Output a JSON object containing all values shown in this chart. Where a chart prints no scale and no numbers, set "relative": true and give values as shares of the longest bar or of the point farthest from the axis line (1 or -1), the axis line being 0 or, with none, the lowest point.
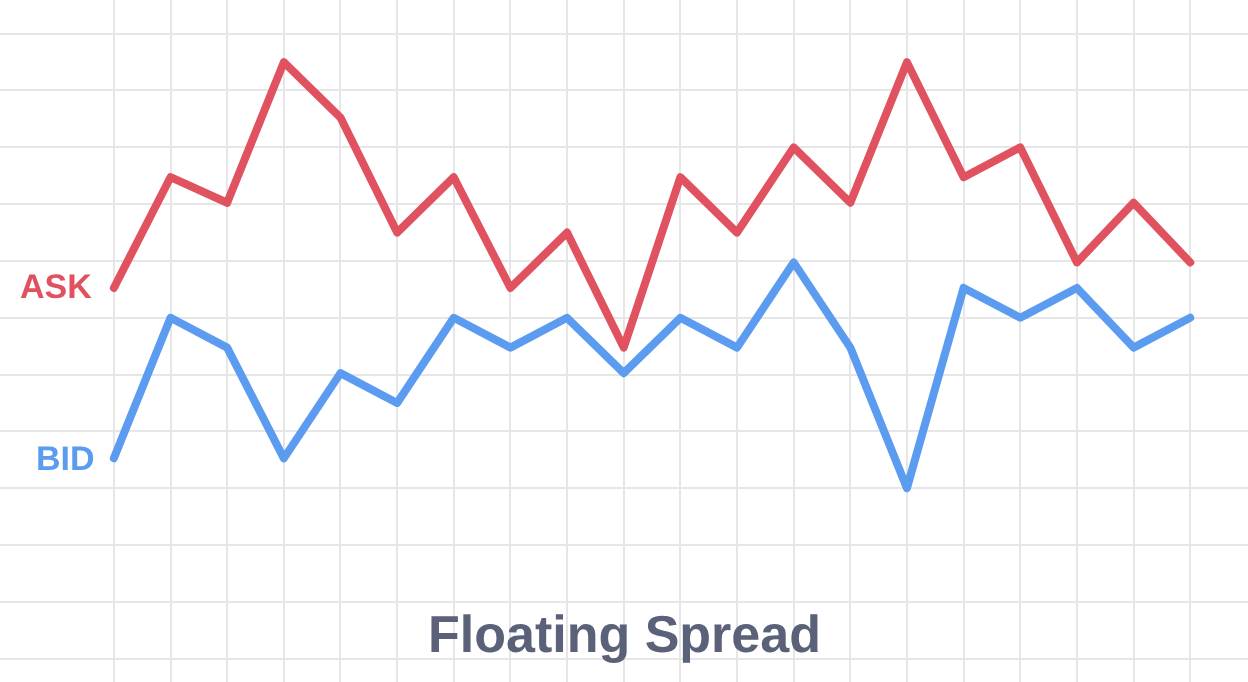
{
  "chart_data": {
    "type": "line",
    "title": "Floating Spread",
    "relative": true,
    "grid": true,
    "legend": false,
    "marker": "none",
    "line_style": "solid",
    "categories": [
      null,
      null,
      null,
      null,
      null,
      null,
      null,
      null,
      null,
      null,
      null,
      null,
      null,
      null,
      null,
      null,
      null,
      null,
      null,
      null
    ],
    "series": [
      {
        "name": "ASK",
        "color": "#e05260",
        "values": [
          0.47,
          0.73,
          0.67,
          1,
          0.87,
          0.6,
          0.73,
          0.47,
          0.6,
          0.33,
          0.73,
          0.6,
          0.8,
          0.67,
          1,
          0.73,
          0.8,
          0.53,
          0.67,
          0.53
        ]
      },
      {
        "name": "BID",
        "color": "#5b9cf0",
        "values": [
          0.07,
          0.4,
          0.33,
          0.07,
          0.27,
          0.2,
          0.4,
          0.33,
          0.4,
          0.27,
          0.4,
          0.33,
          0.53,
          0.33,
          0,
          0.47,
          0.4,
          0.47,
          0.33,
          0.4
        ]
      }
    ]
  }
}
